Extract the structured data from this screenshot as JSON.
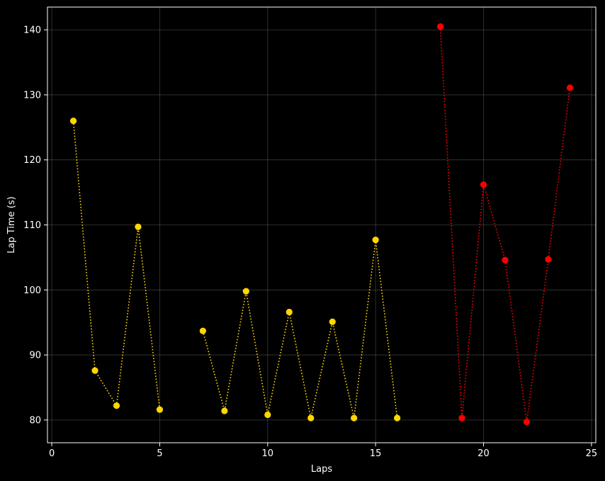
{
  "chart_data": {
    "type": "line",
    "xlabel": "Laps",
    "ylabel": "Lap Time (s)",
    "xlim": [
      -0.2,
      25.2
    ],
    "ylim": [
      76.5,
      143.5
    ],
    "xticks": [
      0,
      5,
      10,
      15,
      20,
      25
    ],
    "yticks": [
      80,
      90,
      100,
      110,
      120,
      130,
      140
    ],
    "grid": true,
    "background": "#000000",
    "series": [
      {
        "color": "#ffd700",
        "line_style": "dotted",
        "marker": "circle",
        "segments": [
          {
            "x": [
              1,
              2,
              3,
              4,
              5
            ],
            "y": [
              126.0,
              87.6,
              82.2,
              109.7,
              81.6
            ]
          },
          {
            "x": [
              7,
              8,
              9,
              10,
              11,
              12,
              13,
              14,
              15,
              16
            ],
            "y": [
              93.7,
              81.4,
              99.8,
              80.8,
              96.6,
              80.3,
              95.1,
              80.3,
              107.7,
              80.3
            ]
          }
        ]
      },
      {
        "color": "#ff0000",
        "line_style": "dotted",
        "marker": "circle",
        "segments": [
          {
            "x": [
              18,
              19,
              20,
              21,
              22,
              23,
              24
            ],
            "y": [
              140.5,
              80.3,
              116.2,
              104.6,
              79.7,
              104.7,
              131.1
            ]
          }
        ]
      }
    ]
  }
}
